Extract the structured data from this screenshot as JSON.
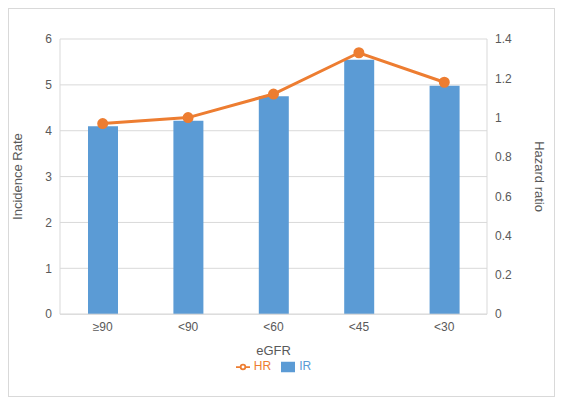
{
  "chart_data": {
    "type": "bar",
    "categories": [
      "≥90",
      "<90",
      "<60",
      "<45",
      "<30"
    ],
    "x_label": "eGFR",
    "y_label": "Incidence Rate",
    "y2_label": "Hazard ratio",
    "ylim": [
      0,
      6
    ],
    "yticks": [
      0,
      1,
      2,
      3,
      4,
      5,
      6
    ],
    "y2lim": [
      0,
      1.4
    ],
    "y2ticks": [
      0,
      0.2,
      0.4,
      0.6,
      0.8,
      1,
      1.2,
      1.4
    ],
    "grid": true,
    "legend": "bottom",
    "series": [
      {
        "name": "IR",
        "type": "bar",
        "color": "#5b9bd5",
        "values": [
          4.1,
          4.22,
          4.75,
          5.55,
          4.98
        ]
      },
      {
        "name": "HR",
        "type": "line",
        "axis": "y2",
        "color": "#ed7d31",
        "marker": "circle",
        "line_style": "solid",
        "values": [
          0.97,
          1.0,
          1.12,
          1.33,
          1.18
        ]
      }
    ]
  }
}
